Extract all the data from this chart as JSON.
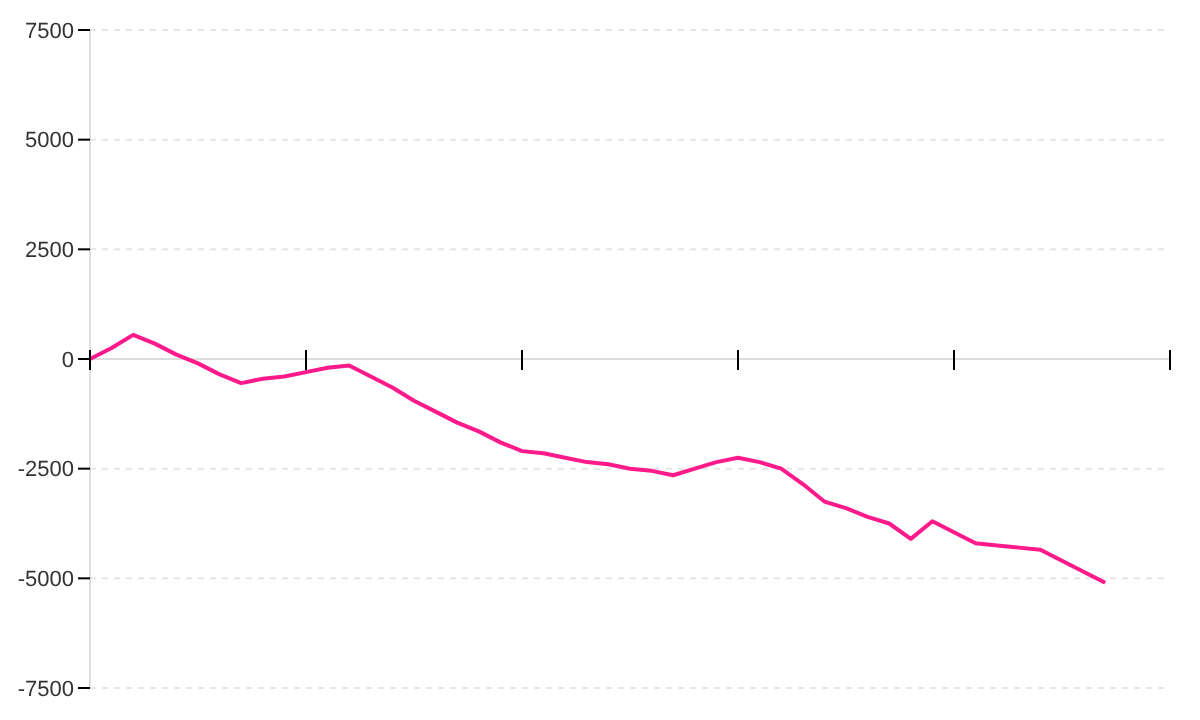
{
  "chart_data": {
    "type": "line",
    "categories": [
      null,
      null,
      null,
      null,
      null,
      null,
      null,
      null,
      null,
      null,
      null,
      null,
      null,
      null,
      null,
      null,
      null,
      null,
      null,
      null,
      null,
      null,
      null,
      null,
      null,
      null,
      null,
      null,
      null,
      null,
      null,
      null,
      null,
      null,
      null,
      null,
      null,
      null,
      null,
      null,
      null,
      null,
      null,
      null,
      null,
      null,
      null,
      null,
      null,
      null,
      null
    ],
    "values": [
      0,
      250,
      550,
      350,
      100,
      -100,
      -350,
      -550,
      -450,
      -400,
      -300,
      -200,
      -150,
      -400,
      -650,
      -950,
      -1200,
      -1450,
      -1650,
      -1900,
      -2100,
      -2150,
      -2250,
      -2350,
      -2400,
      -2500,
      -2550,
      -2650,
      -2500,
      -2350,
      -2250,
      -2350,
      -2500,
      -2850,
      -3250,
      -3400,
      -3600,
      -3750,
      -4100,
      -3700,
      -3950,
      -4200,
      -4250,
      -4300,
      -4350,
      -4600,
      -4850,
      -5100,
      null,
      null,
      null
    ],
    "color": "#ff1a8c",
    "ylim": [
      -7500,
      7500
    ],
    "yticks": [
      -7500,
      -5000,
      -2500,
      0,
      2500,
      5000,
      7500
    ],
    "grid": "y",
    "tick_labels": "y",
    "marker": "none",
    "line_style": "solid"
  }
}
